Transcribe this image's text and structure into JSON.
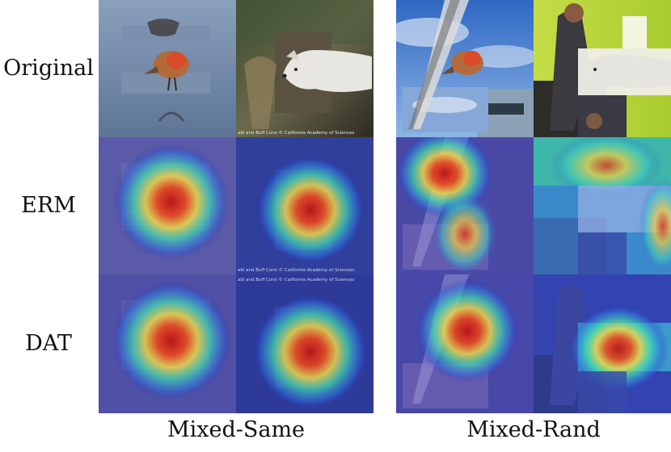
{
  "rows": [
    "Original",
    "ERM",
    "DAT"
  ],
  "columns": [
    "Mixed-Same",
    "Mixed-Rand"
  ],
  "image_credit": "abl and Buff Corsi © California Academy of Sciences",
  "icons": {
    "bird": "bird-icon",
    "wolf": "wolf-icon",
    "heatmap": "attention-heatmap"
  },
  "colors": {
    "water": "#6f86a6",
    "sky": "#3f78c9",
    "wall": "#b7d63a",
    "heat_hot": "#e02a1a",
    "heat_warm": "#f5e640",
    "heat_cool": "#3f5dc4"
  }
}
